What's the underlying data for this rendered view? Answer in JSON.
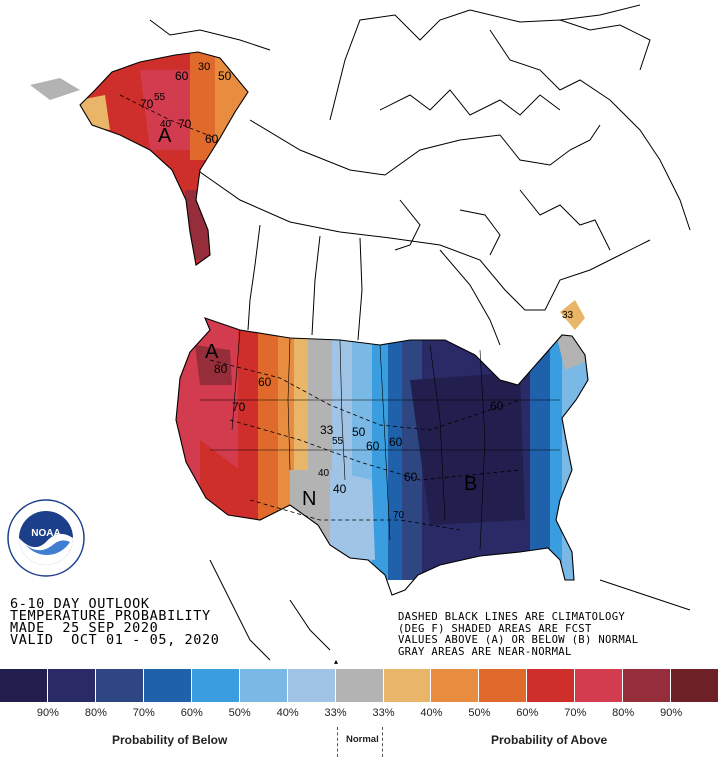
{
  "title_block": {
    "line1": "6-10 DAY OUTLOOK",
    "line2": "TEMPERATURE PROBABILITY",
    "line3": "MADE  25 SEP 2020",
    "line4": "VALID  OCT 01 - 05, 2020"
  },
  "notes": {
    "line1": "DASHED BLACK LINES ARE CLIMATOLOGY",
    "line2": "(DEG F) SHADED AREAS ARE FCST",
    "line3": "VALUES ABOVE (A) OR BELOW (B) NORMAL",
    "line4": "GRAY AREAS ARE NEAR-NORMAL"
  },
  "logo": {
    "text": "NOAA",
    "ring_text": "NATIONAL OCEANIC AND ATMOSPHERIC ADMINISTRATION · U.S. DEPARTMENT OF COMMERCE"
  },
  "legend": {
    "colors": [
      "#221f4e",
      "#2a2a66",
      "#2e4782",
      "#1f62ab",
      "#3a9de0",
      "#7ab8e6",
      "#9fc4e6",
      "#b3b3b3",
      "#e8b569",
      "#e88d40",
      "#e06a2c",
      "#cf2f2a",
      "#d33c4f",
      "#962d3a",
      "#6d2126"
    ],
    "ticks": [
      "",
      "90%",
      "80%",
      "70%",
      "60%",
      "50%",
      "40%",
      "33%",
      "33%",
      "40%",
      "50%",
      "60%",
      "70%",
      "80%",
      "90%"
    ],
    "below_label": "Probability of Below",
    "normal_label": "Normal",
    "above_label": "Probability of Above"
  },
  "map_labels": {
    "alaska": [
      "A",
      "70",
      "55",
      "40",
      "70",
      "60",
      "50",
      "60",
      "30"
    ],
    "conus": [
      "A",
      "80",
      "60",
      "70",
      "33",
      "55",
      "50",
      "60",
      "60",
      "40",
      "N",
      "40",
      "60",
      "70",
      "B",
      "60",
      "33"
    ]
  }
}
